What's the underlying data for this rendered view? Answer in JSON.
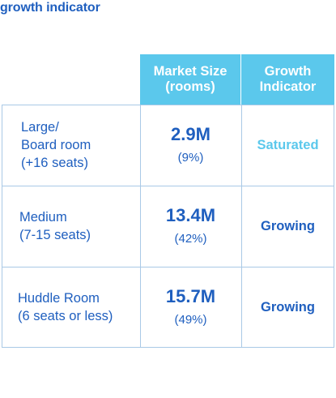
{
  "title": "growth indicator",
  "header": {
    "market_line1": "Market Size",
    "market_line2": "(rooms)",
    "growth_line1": "Growth",
    "growth_line2": "Indicator"
  },
  "rows": [
    {
      "label_lines": [
        "Large/",
        "Board room",
        "(+16 seats)"
      ],
      "market_value": "2.9M",
      "market_pct": "(9%)",
      "growth": "Saturated"
    },
    {
      "label_lines": [
        "Medium",
        "(7-15 seats)"
      ],
      "market_value": "13.4M",
      "market_pct": "(42%)",
      "growth": "Growing"
    },
    {
      "label_lines": [
        "Huddle Room",
        "(6 seats or less)"
      ],
      "market_value": "15.7M",
      "market_pct": "(49%)",
      "growth": "Growing"
    }
  ],
  "colors": {
    "header_bg": "#5bc8ec",
    "text_primary": "#1f5fbf",
    "saturated": "#5bc8ec",
    "grid_line": "#a9c9e6"
  }
}
